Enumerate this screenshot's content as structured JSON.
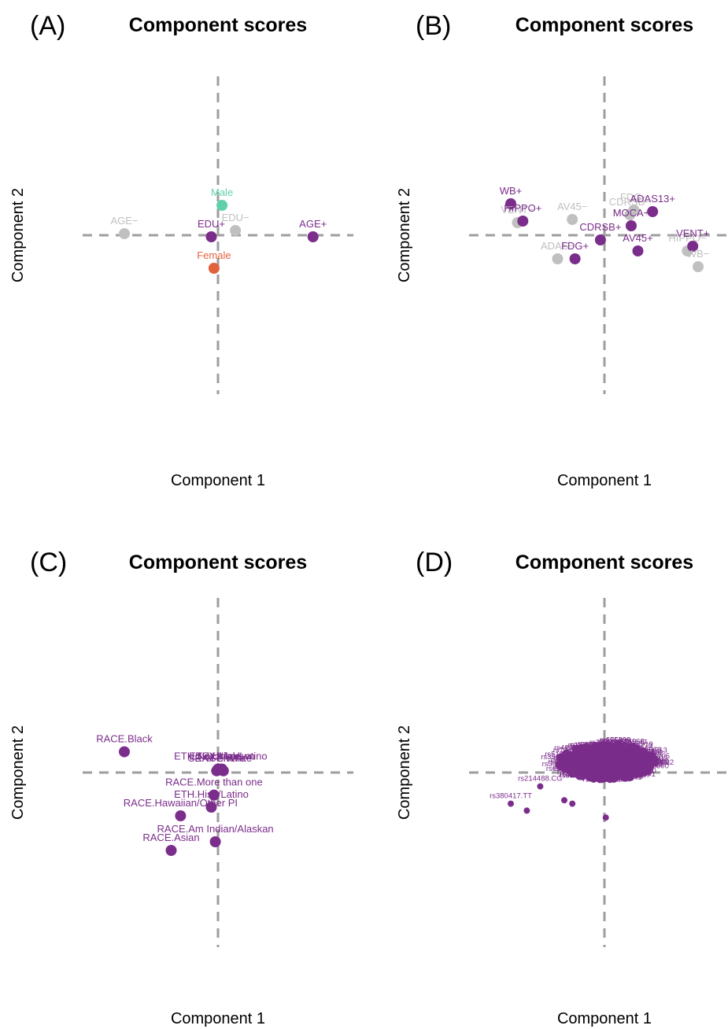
{
  "colors": {
    "purple": "#7b2d8b",
    "grey": "#c0c0c0",
    "green": "#5fd1a8",
    "red": "#e3623e",
    "refline": "#9e9e9e"
  },
  "chart_data": [
    {
      "type": "scatter",
      "panel_letter": "(A)",
      "title": "Component scores",
      "xlabel": "Component 1",
      "ylabel": "Component 2",
      "xlim": [
        -1,
        1
      ],
      "ylim": [
        -1,
        1
      ],
      "points": [
        {
          "label": "AGE−",
          "x": -0.7,
          "y": 0.01,
          "color": "grey"
        },
        {
          "label": "Male",
          "x": 0.03,
          "y": 0.19,
          "color": "green"
        },
        {
          "label": "EDU+",
          "x": -0.05,
          "y": -0.01,
          "color": "purple"
        },
        {
          "label": "EDU−",
          "x": 0.13,
          "y": 0.03,
          "color": "grey"
        },
        {
          "label": "AGE+",
          "x": 0.71,
          "y": -0.01,
          "color": "purple"
        },
        {
          "label": "Female",
          "x": -0.03,
          "y": -0.21,
          "color": "red"
        }
      ]
    },
    {
      "type": "scatter",
      "panel_letter": "(B)",
      "title": "Component scores",
      "xlabel": "Component 1",
      "ylabel": "Component 2",
      "xlim": [
        -1,
        1
      ],
      "ylim": [
        -1,
        1
      ],
      "points": [
        {
          "label": "WB+",
          "x": -0.7,
          "y": 0.2,
          "color": "purple"
        },
        {
          "label": "VENT−",
          "x": -0.65,
          "y": 0.08,
          "color": "grey"
        },
        {
          "label": "HIPPO+",
          "x": -0.61,
          "y": 0.09,
          "color": "purple"
        },
        {
          "label": "AV45−",
          "x": -0.24,
          "y": 0.1,
          "color": "grey"
        },
        {
          "label": "ADAS−",
          "x": -0.35,
          "y": -0.15,
          "color": "grey"
        },
        {
          "label": "FDG+",
          "x": -0.22,
          "y": -0.15,
          "color": "purple"
        },
        {
          "label": "CDRSB−",
          "x": 0.19,
          "y": 0.13,
          "color": "grey"
        },
        {
          "label": "FDG−",
          "x": 0.22,
          "y": 0.16,
          "color": "grey"
        },
        {
          "label": "MOCA+",
          "x": 0.2,
          "y": 0.06,
          "color": "grey"
        },
        {
          "label": "ADAS13+",
          "x": 0.36,
          "y": 0.15,
          "color": "purple"
        },
        {
          "label": "MOCA−",
          "x": 0.2,
          "y": 0.06,
          "color": "purple"
        },
        {
          "label": "CDRSB+",
          "x": -0.03,
          "y": -0.03,
          "color": "purple"
        },
        {
          "label": "AV45+",
          "x": 0.25,
          "y": -0.1,
          "color": "purple"
        },
        {
          "label": "HIPPO−",
          "x": 0.62,
          "y": -0.1,
          "color": "grey"
        },
        {
          "label": "VENT+",
          "x": 0.66,
          "y": -0.07,
          "color": "purple"
        },
        {
          "label": "WB−",
          "x": 0.7,
          "y": -0.2,
          "color": "grey"
        }
      ]
    },
    {
      "type": "scatter",
      "panel_letter": "(C)",
      "title": "Component scores",
      "xlabel": "Component 1",
      "ylabel": "Component 2",
      "xlim": [
        -1,
        1
      ],
      "ylim": [
        -1,
        1
      ],
      "points": [
        {
          "label": "RACE.Black",
          "x": -0.7,
          "y": 0.12,
          "color": "purple"
        },
        {
          "label": "ETH.Not Hisp/Latino",
          "x": 0.02,
          "y": 0.02,
          "color": "purple"
        },
        {
          "label": "SEX.Male",
          "x": 0.0,
          "y": 0.02,
          "color": "purple"
        },
        {
          "label": "RACE.White",
          "x": 0.04,
          "y": 0.01,
          "color": "purple"
        },
        {
          "label": "SEX.Female",
          "x": -0.01,
          "y": 0.01,
          "color": "purple"
        },
        {
          "label": "ETH.Unknown",
          "x": 0.03,
          "y": 0.02,
          "color": "purple"
        },
        {
          "label": "RACE.More than one",
          "x": -0.03,
          "y": -0.13,
          "color": "purple"
        },
        {
          "label": "ETH.Hisp/Latino",
          "x": -0.05,
          "y": -0.2,
          "color": "purple"
        },
        {
          "label": "RACE.Hawaiian/Other PI",
          "x": -0.28,
          "y": -0.25,
          "color": "purple"
        },
        {
          "label": "RACE.Am Indian/Alaskan",
          "x": -0.02,
          "y": -0.4,
          "color": "purple"
        },
        {
          "label": "RACE.Asian",
          "x": -0.35,
          "y": -0.45,
          "color": "purple"
        }
      ]
    },
    {
      "type": "scatter",
      "panel_letter": "(D)",
      "title": "Component scores",
      "xlabel": "Component 1",
      "ylabel": "Component 2",
      "xlim": [
        -1,
        1
      ],
      "ylim": [
        -1,
        1
      ],
      "cloud": {
        "center": [
          0.02,
          0.06
        ],
        "label_color": "purple",
        "outlier_points": [
          {
            "label": "rs214488.CG",
            "x": -0.48,
            "y": -0.08,
            "color": "purple"
          },
          {
            "label": "rs380417.TT",
            "x": -0.7,
            "y": -0.18,
            "color": "purple"
          },
          {
            "label": "",
            "x": -0.58,
            "y": -0.22,
            "color": "purple"
          },
          {
            "label": "",
            "x": -0.3,
            "y": -0.16,
            "color": "purple"
          },
          {
            "label": "",
            "x": -0.24,
            "y": -0.18,
            "color": "purple"
          },
          {
            "label": "",
            "x": 0.01,
            "y": -0.26,
            "color": "purple"
          }
        ],
        "visible_labels": [
          "rs2830028.TT",
          "rs6516727",
          "rs128",
          "rs214488.CG",
          "rs380417.TT"
        ]
      }
    }
  ]
}
